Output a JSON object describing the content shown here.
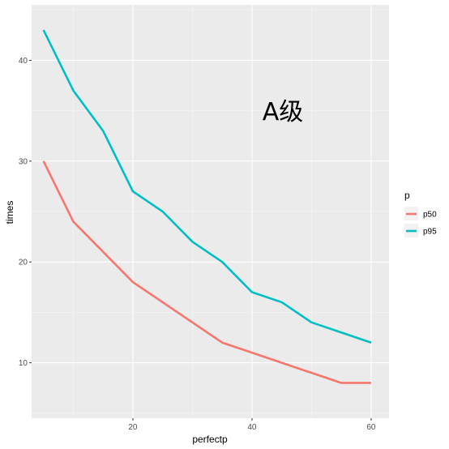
{
  "chart_data": {
    "type": "line",
    "title": "",
    "xlabel": "perfectp",
    "ylabel": "times",
    "xlim": [
      3,
      63
    ],
    "ylim": [
      4.5,
      45.5
    ],
    "x_ticks": [
      20,
      40,
      60
    ],
    "y_ticks": [
      10,
      20,
      30,
      40
    ],
    "x_tick_labels": [
      "20",
      "40",
      "60"
    ],
    "y_tick_labels": [
      "10",
      "20",
      "30",
      "40"
    ],
    "grid": true,
    "legend_title": "p",
    "legend_position": "right",
    "annotation": "A级",
    "series": [
      {
        "name": "p50",
        "color": "#F8766D",
        "x": [
          5,
          10,
          15,
          20,
          25,
          30,
          35,
          40,
          45,
          50,
          55,
          60
        ],
        "values": [
          30,
          24,
          21,
          18,
          16,
          14,
          12,
          11,
          10,
          9,
          8,
          8
        ]
      },
      {
        "name": "p95",
        "color": "#00BFC4",
        "x": [
          5,
          10,
          15,
          20,
          25,
          30,
          35,
          40,
          45,
          50,
          55,
          60
        ],
        "values": [
          43,
          37,
          33,
          27,
          25,
          22,
          20,
          17,
          16,
          14,
          13,
          12
        ]
      }
    ]
  }
}
